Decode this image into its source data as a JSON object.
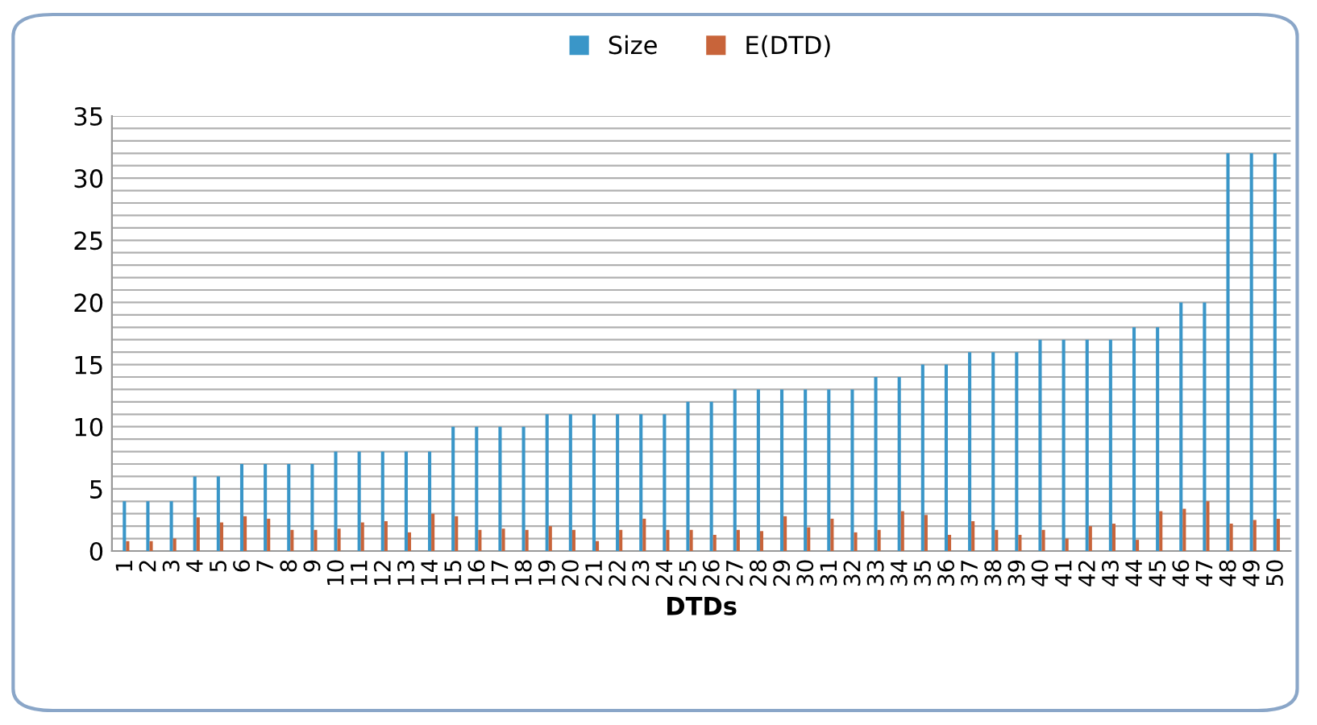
{
  "chart_data": {
    "type": "bar",
    "xlabel": "DTDs",
    "categories": [
      "1",
      "2",
      "3",
      "4",
      "5",
      "6",
      "7",
      "8",
      "9",
      "10",
      "11",
      "12",
      "13",
      "14",
      "15",
      "16",
      "17",
      "18",
      "19",
      "20",
      "21",
      "22",
      "23",
      "24",
      "25",
      "26",
      "27",
      "28",
      "29",
      "30",
      "31",
      "32",
      "33",
      "34",
      "35",
      "36",
      "37",
      "38",
      "39",
      "40",
      "41",
      "42",
      "43",
      "44",
      "45",
      "46",
      "47",
      "48",
      "49",
      "50"
    ],
    "series": [
      {
        "name": "Size",
        "color": "#3a96c8",
        "values": [
          4,
          4,
          4,
          6,
          6,
          7,
          7,
          7,
          7,
          8,
          8,
          8,
          8,
          8,
          10,
          10,
          10,
          10,
          11,
          11,
          11,
          11,
          11,
          11,
          12,
          12,
          13,
          13,
          13,
          13,
          13,
          13,
          14,
          14,
          15,
          15,
          16,
          16,
          16,
          17,
          17,
          17,
          17,
          18,
          18,
          20,
          20,
          32,
          32,
          32
        ]
      },
      {
        "name": "E(DTD)",
        "color": "#c8643a",
        "values": [
          0.8,
          0.8,
          1.0,
          2.7,
          2.3,
          2.8,
          2.6,
          1.7,
          1.7,
          1.8,
          2.3,
          2.4,
          1.5,
          3.0,
          2.8,
          1.7,
          1.8,
          1.7,
          2.0,
          1.7,
          0.8,
          1.7,
          2.6,
          1.7,
          1.7,
          1.3,
          1.7,
          1.6,
          2.8,
          1.9,
          2.6,
          1.5,
          1.7,
          3.2,
          2.9,
          1.3,
          2.4,
          1.7,
          1.3,
          1.7,
          1.0,
          2.0,
          2.2,
          0.9,
          3.2,
          3.4,
          4.0,
          2.2,
          2.5,
          2.6
        ]
      }
    ],
    "ylim": [
      0,
      35
    ],
    "yticks": [
      0,
      {
        "value": 1,
        "label": null
      },
      {
        "value": 2,
        "label": null
      },
      {
        "value": 3,
        "label": null
      },
      {
        "value": 4,
        "label": null
      },
      5,
      {
        "value": 6,
        "label": null
      },
      {
        "value": 7,
        "label": null
      },
      {
        "value": 8,
        "label": null
      },
      {
        "value": 9,
        "label": null
      },
      10,
      {
        "value": 11,
        "label": null
      },
      {
        "value": 12,
        "label": null
      },
      {
        "value": 13,
        "label": null
      },
      {
        "value": 14,
        "label": null
      },
      15,
      {
        "value": 16,
        "label": null
      },
      {
        "value": 17,
        "label": null
      },
      {
        "value": 18,
        "label": null
      },
      {
        "value": 19,
        "label": null
      },
      20,
      {
        "value": 21,
        "label": null
      },
      {
        "value": 22,
        "label": null
      },
      {
        "value": 23,
        "label": null
      },
      {
        "value": 24,
        "label": null
      },
      25,
      {
        "value": 26,
        "label": null
      },
      {
        "value": 27,
        "label": null
      },
      {
        "value": 28,
        "label": null
      },
      {
        "value": 29,
        "label": null
      },
      30,
      {
        "value": 31,
        "label": null
      },
      {
        "value": 32,
        "label": null
      },
      {
        "value": 33,
        "label": null
      },
      {
        "value": 34,
        "label": null
      },
      35
    ],
    "grid": "y",
    "legend": "top"
  }
}
